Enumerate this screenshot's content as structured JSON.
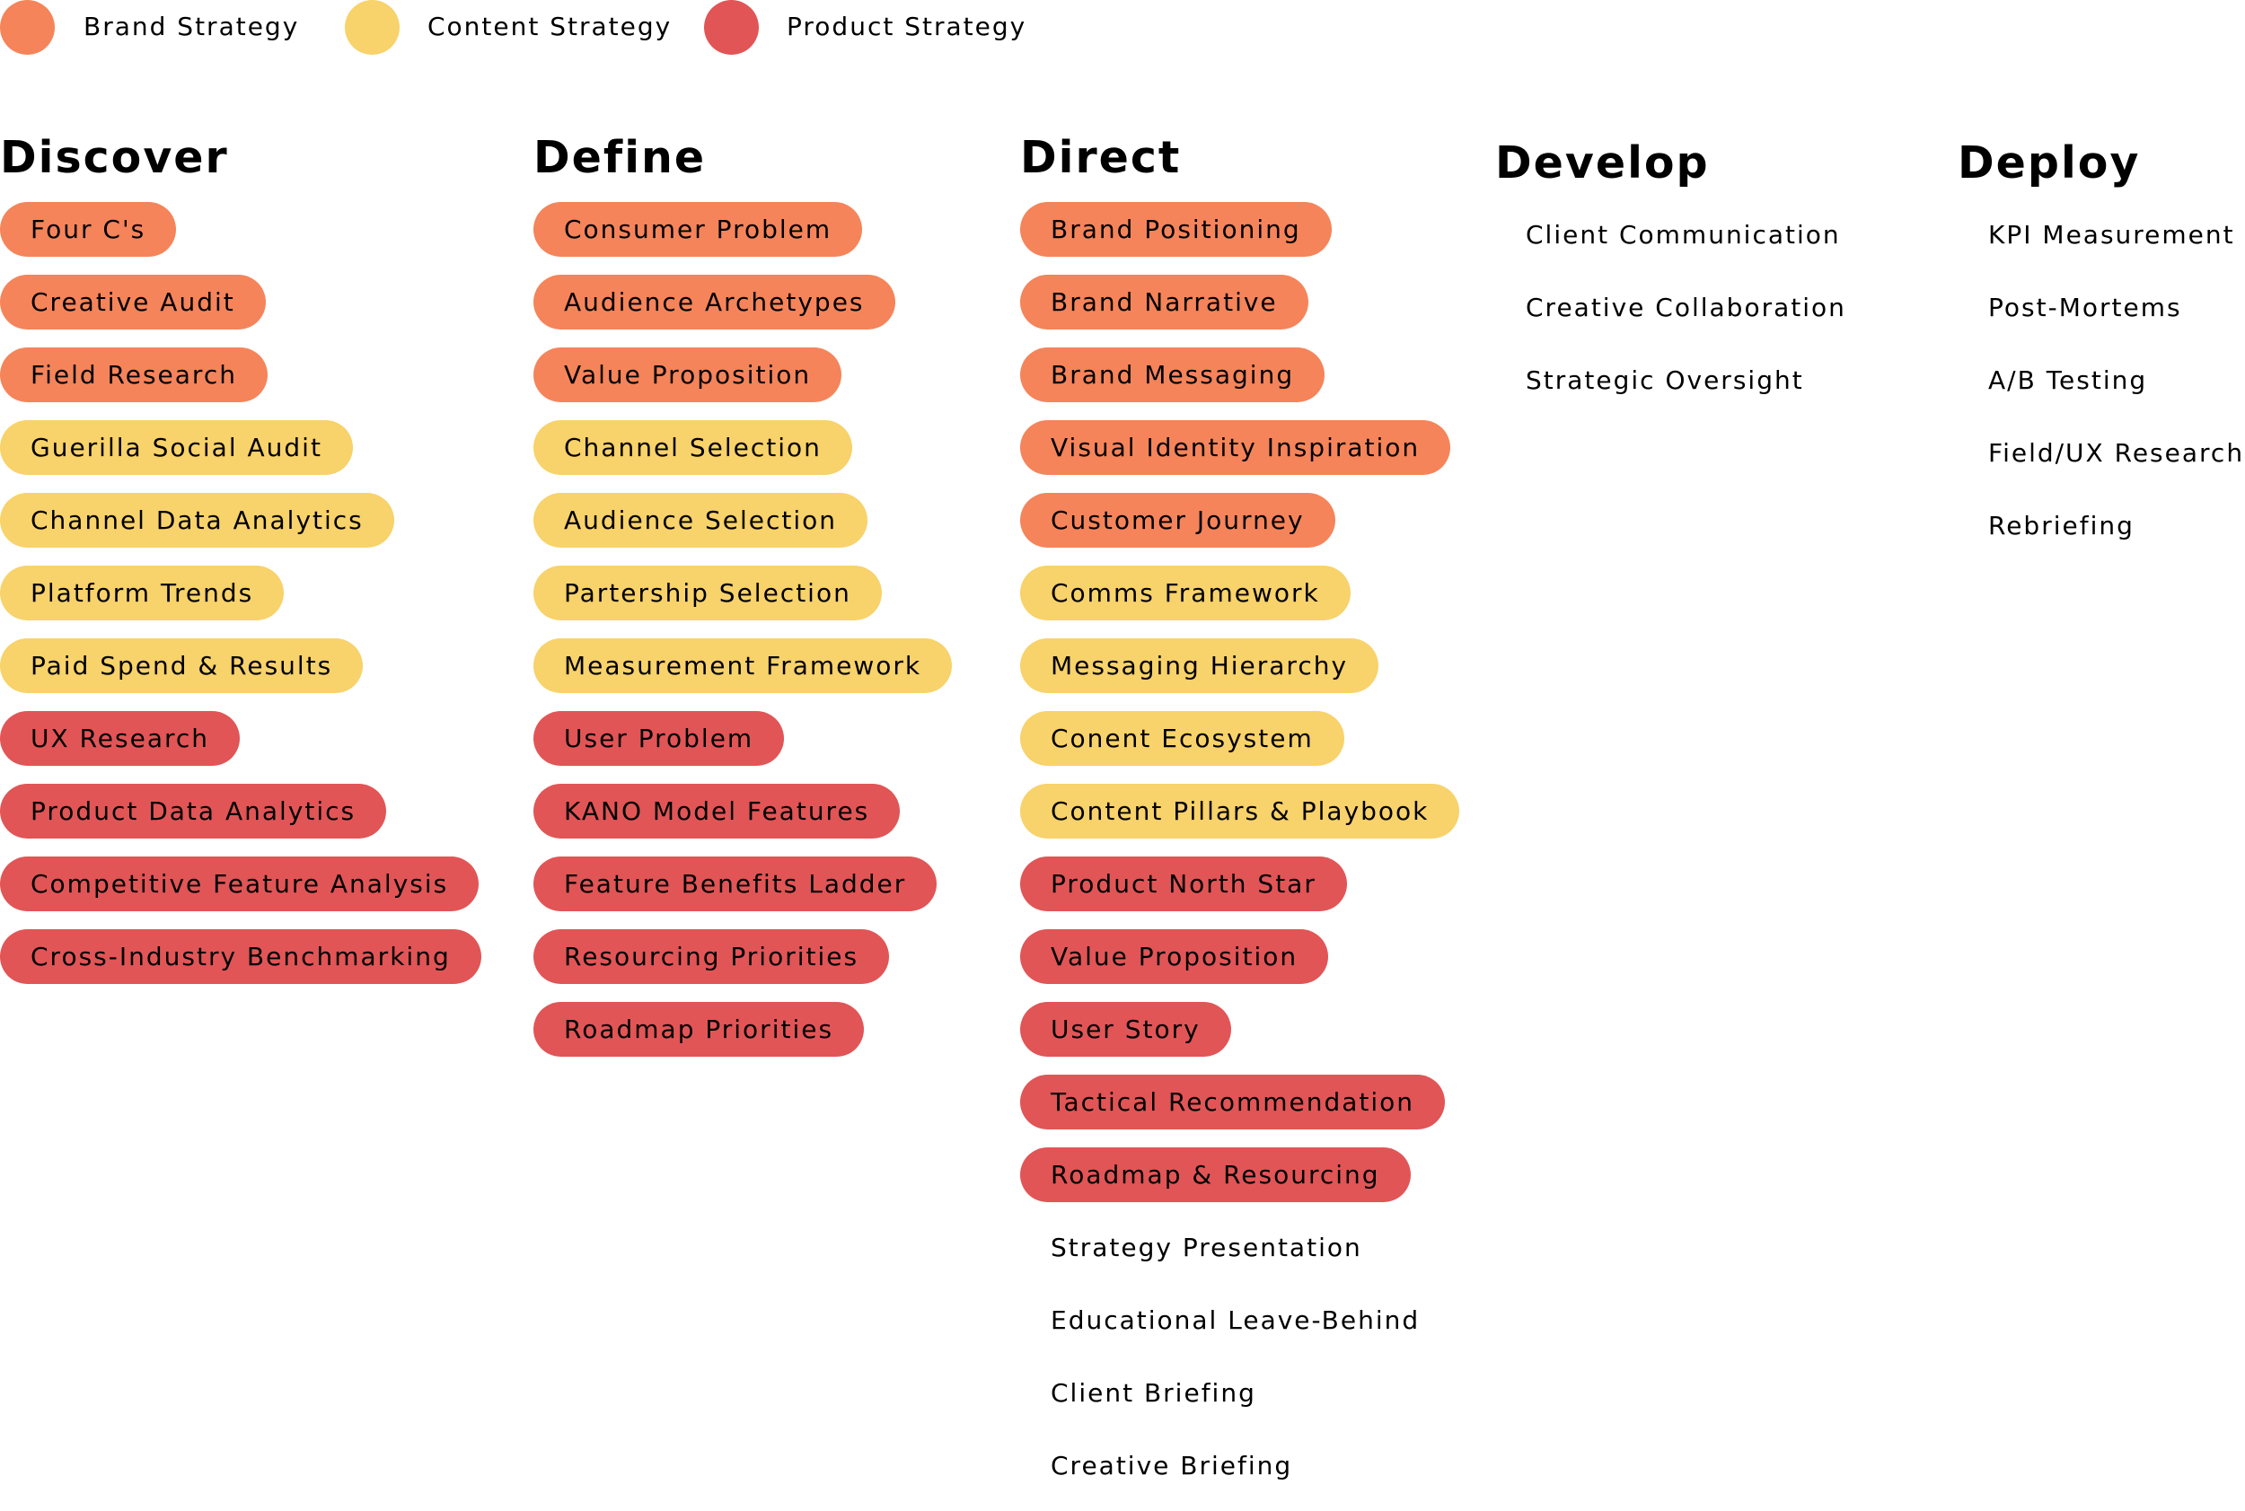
{
  "colors": {
    "brand": "#F5845A",
    "content": "#F8D26A",
    "product": "#E15556",
    "none": "transparent"
  },
  "legend": [
    {
      "key": "brand",
      "label": "Brand Strategy"
    },
    {
      "key": "content",
      "label": "Content Strategy"
    },
    {
      "key": "product",
      "label": "Product Strategy"
    }
  ],
  "columns": [
    {
      "title": "Discover",
      "items": [
        {
          "label": "Four C's",
          "category": "brand"
        },
        {
          "label": "Creative Audit",
          "category": "brand"
        },
        {
          "label": "Field Research",
          "category": "brand"
        },
        {
          "label": "Guerilla Social Audit",
          "category": "content"
        },
        {
          "label": "Channel Data Analytics",
          "category": "content"
        },
        {
          "label": "Platform Trends",
          "category": "content"
        },
        {
          "label": "Paid Spend & Results",
          "category": "content"
        },
        {
          "label": "UX Research",
          "category": "product"
        },
        {
          "label": "Product Data Analytics",
          "category": "product"
        },
        {
          "label": "Competitive Feature Analysis",
          "category": "product"
        },
        {
          "label": "Cross-Industry Benchmarking",
          "category": "product"
        }
      ]
    },
    {
      "title": "Define",
      "items": [
        {
          "label": "Consumer Problem",
          "category": "brand"
        },
        {
          "label": "Audience Archetypes",
          "category": "brand"
        },
        {
          "label": "Value Proposition",
          "category": "brand"
        },
        {
          "label": "Channel Selection",
          "category": "content"
        },
        {
          "label": "Audience Selection",
          "category": "content"
        },
        {
          "label": "Partership Selection",
          "category": "content"
        },
        {
          "label": "Measurement Framework",
          "category": "content"
        },
        {
          "label": "User Problem",
          "category": "product"
        },
        {
          "label": "KANO Model Features",
          "category": "product"
        },
        {
          "label": "Feature Benefits Ladder",
          "category": "product"
        },
        {
          "label": "Resourcing Priorities",
          "category": "product"
        },
        {
          "label": "Roadmap Priorities",
          "category": "product"
        }
      ]
    },
    {
      "title": "Direct",
      "items": [
        {
          "label": "Brand Positioning",
          "category": "brand"
        },
        {
          "label": "Brand Narrative",
          "category": "brand"
        },
        {
          "label": "Brand Messaging",
          "category": "brand"
        },
        {
          "label": "Visual Identity Inspiration",
          "category": "brand"
        },
        {
          "label": "Customer Journey",
          "category": "brand"
        },
        {
          "label": "Comms Framework",
          "category": "content"
        },
        {
          "label": "Messaging Hierarchy",
          "category": "content"
        },
        {
          "label": "Conent Ecosystem",
          "category": "content"
        },
        {
          "label": "Content Pillars & Playbook",
          "category": "content"
        },
        {
          "label": "Product North Star",
          "category": "product"
        },
        {
          "label": "Value Proposition",
          "category": "product"
        },
        {
          "label": "User Story",
          "category": "product"
        },
        {
          "label": "Tactical Recommendation",
          "category": "product"
        },
        {
          "label": "Roadmap & Resourcing",
          "category": "product"
        },
        {
          "label": "Strategy Presentation",
          "category": "none"
        },
        {
          "label": "Educational Leave-Behind",
          "category": "none"
        },
        {
          "label": "Client Briefing",
          "category": "none"
        },
        {
          "label": "Creative Briefing",
          "category": "none"
        }
      ]
    },
    {
      "title": "Develop",
      "items": [
        {
          "label": "Client Communication",
          "category": "none"
        },
        {
          "label": "Creative Collaboration",
          "category": "none"
        },
        {
          "label": "Strategic Oversight",
          "category": "none"
        }
      ]
    },
    {
      "title": "Deploy",
      "items": [
        {
          "label": "KPI Measurement",
          "category": "none"
        },
        {
          "label": "Post-Mortems",
          "category": "none"
        },
        {
          "label": "A/B Testing",
          "category": "none"
        },
        {
          "label": "Field/UX Research",
          "category": "none"
        },
        {
          "label": "Rebriefing",
          "category": "none"
        }
      ]
    }
  ]
}
